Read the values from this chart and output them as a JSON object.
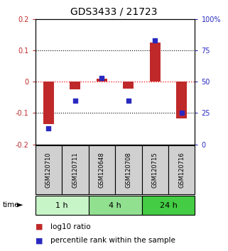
{
  "title": "GDS3433 / 21723",
  "samples": [
    "GSM120710",
    "GSM120711",
    "GSM120648",
    "GSM120708",
    "GSM120715",
    "GSM120716"
  ],
  "groups": [
    {
      "label": "1 h",
      "indices": [
        0,
        1
      ],
      "color": "#c8f5c8"
    },
    {
      "label": "4 h",
      "indices": [
        2,
        3
      ],
      "color": "#90e090"
    },
    {
      "label": "24 h",
      "indices": [
        4,
        5
      ],
      "color": "#44cc44"
    }
  ],
  "log10_ratio": [
    -0.135,
    -0.025,
    0.01,
    -0.022,
    0.125,
    -0.118
  ],
  "percentile_rank": [
    13,
    35,
    53,
    35,
    83,
    25
  ],
  "ylim_left": [
    -0.2,
    0.2
  ],
  "ylim_right": [
    0,
    100
  ],
  "yticks_left": [
    -0.2,
    -0.1,
    0.0,
    0.1,
    0.2
  ],
  "yticks_right": [
    0,
    25,
    50,
    75,
    100
  ],
  "ytick_labels_right": [
    "0",
    "25",
    "50",
    "75",
    "100%"
  ],
  "bar_color_red": "#c0292a",
  "bar_color_blue": "#2929c0",
  "dotted_hlines": [
    -0.1,
    0.1
  ],
  "bar_width": 0.4,
  "sample_box_color": "#d0d0d0",
  "legend_red": "log10 ratio",
  "legend_blue": "percentile rank within the sample"
}
